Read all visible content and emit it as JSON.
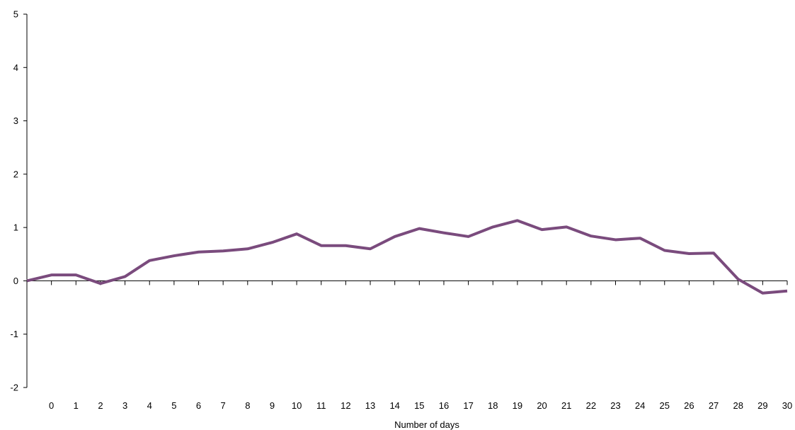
{
  "chart_data": {
    "type": "line",
    "title": "",
    "xlabel": "Number of days",
    "ylabel": "",
    "categories": [
      "0",
      "1",
      "2",
      "3",
      "4",
      "5",
      "6",
      "7",
      "8",
      "9",
      "10",
      "11",
      "12",
      "13",
      "14",
      "15",
      "16",
      "17",
      "18",
      "19",
      "20",
      "21",
      "22",
      "23",
      "24",
      "25",
      "26",
      "27",
      "28",
      "29",
      "30"
    ],
    "x_value_at_origin": -1,
    "series": [
      {
        "color": "#7a4b7d",
        "x": [
          -1,
          0,
          1,
          2,
          3,
          4,
          5,
          6,
          7,
          8,
          9,
          10,
          11,
          12,
          13,
          14,
          15,
          16,
          17,
          18,
          19,
          20,
          21,
          22,
          23,
          24,
          25,
          26,
          27,
          28,
          29,
          30
        ],
        "values": [
          0.0,
          0.11,
          0.11,
          -0.05,
          0.08,
          0.38,
          0.47,
          0.54,
          0.56,
          0.6,
          0.72,
          0.88,
          0.66,
          0.66,
          0.6,
          0.83,
          0.98,
          0.9,
          0.83,
          1.01,
          1.13,
          0.96,
          1.01,
          0.84,
          0.77,
          0.8,
          0.57,
          0.51,
          0.52,
          0.03,
          -0.23,
          -0.19
        ]
      }
    ],
    "yticks": [
      -2,
      -1,
      0,
      1,
      2,
      3,
      4,
      5
    ],
    "ylim": [
      -2,
      5
    ],
    "xlim": [
      -1,
      30
    ],
    "grid": false,
    "legend": "none"
  }
}
